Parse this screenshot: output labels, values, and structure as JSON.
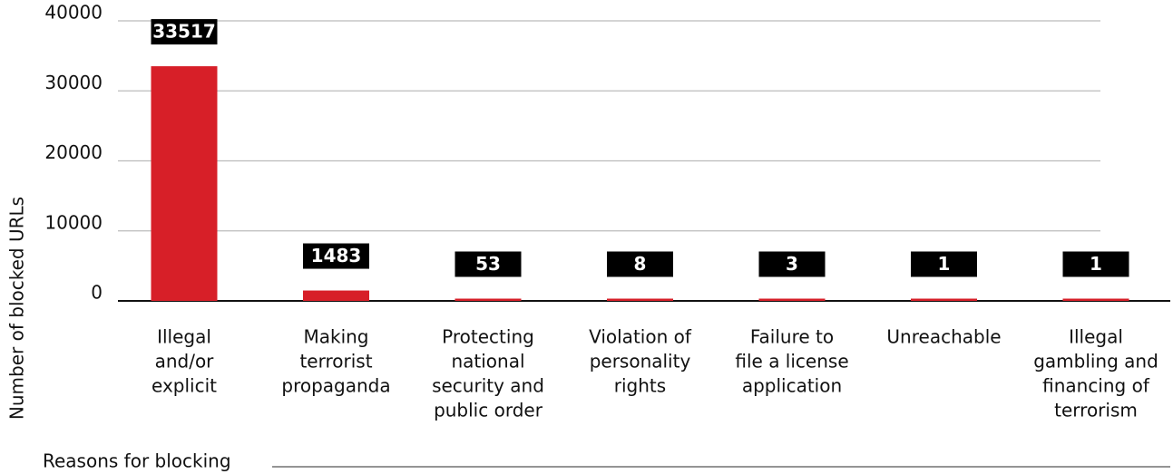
{
  "chart_data": {
    "type": "bar",
    "x_label": "Reasons for blocking",
    "y_label": "Number of blocked URLs",
    "categories": [
      [
        "Illegal",
        "and/or",
        "explicit"
      ],
      [
        "Making",
        "terrorist",
        "propaganda"
      ],
      [
        "Protecting",
        "national",
        "security and",
        "public order"
      ],
      [
        "Violation of",
        "personality",
        "rights"
      ],
      [
        "Failure to",
        "file a license",
        "application"
      ],
      [
        "Unreachable"
      ],
      [
        "Illegal",
        "gambling and",
        "financing of",
        "terrorism"
      ]
    ],
    "values": [
      33517,
      1483,
      53,
      8,
      3,
      1,
      1
    ],
    "color": "#d71f28",
    "ylim": [
      0,
      40000
    ],
    "yticks": [
      0,
      10000,
      20000,
      30000,
      40000
    ],
    "grid": true
  }
}
